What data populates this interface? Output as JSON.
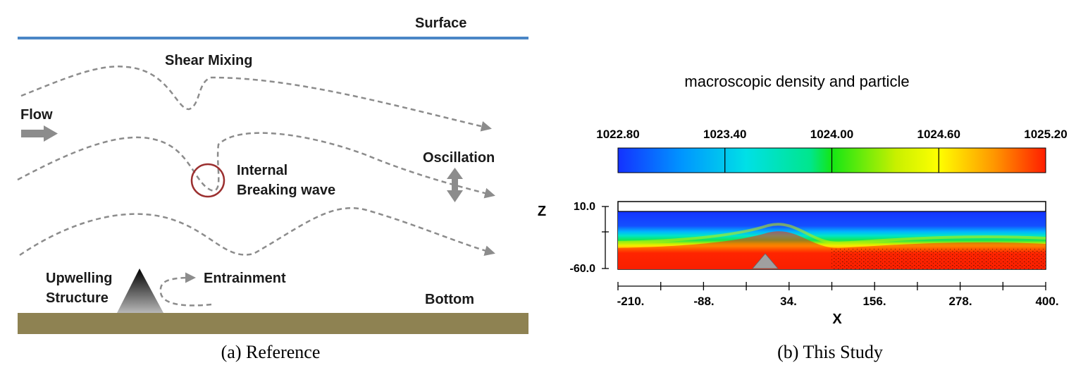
{
  "panel_a": {
    "labels": {
      "surface": "Surface",
      "shear_mixing": "Shear Mixing",
      "flow": "Flow",
      "oscillation": "Oscillation",
      "internal": "Internal",
      "breaking_wave": "Breaking wave",
      "upwelling": "Upwelling",
      "structure": "Structure",
      "entrainment": "Entrainment",
      "bottom": "Bottom"
    },
    "caption": "(a) Reference",
    "colors": {
      "surface_line": "#4a86c6",
      "bottom_bed": "#8e8252",
      "flow_lines": "#8c8c8c",
      "breaking_circle": "#9b2f2f"
    }
  },
  "panel_b": {
    "title": "macroscopic density and particle",
    "colorbar": {
      "ticks": [
        "1022.80",
        "1023.40",
        "1024.00",
        "1024.60",
        "1025.20"
      ]
    },
    "z_label": "Z",
    "z_ticks": [
      "10.0",
      "-60.0"
    ],
    "x_label": "X",
    "x_ticks": [
      "-210.",
      "-88.",
      "34.",
      "156.",
      "278.",
      "400."
    ],
    "caption": "(b) This Study"
  }
}
